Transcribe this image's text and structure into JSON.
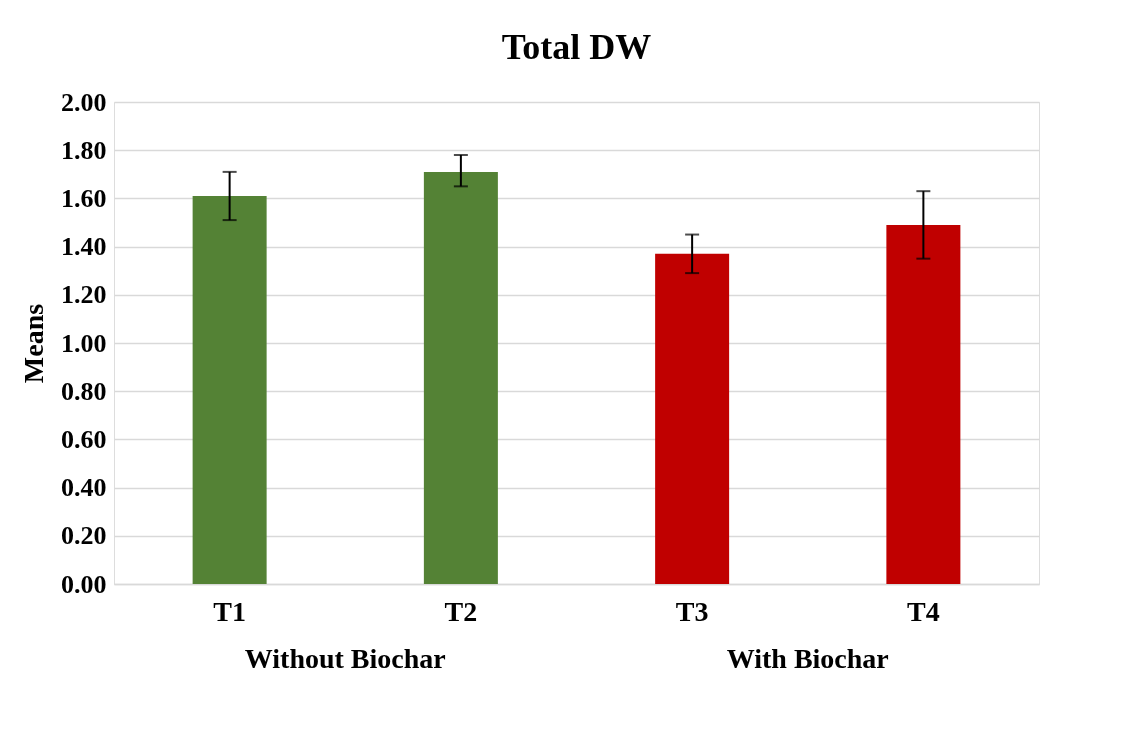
{
  "chart_data": {
    "type": "bar",
    "title": "Total DW",
    "ylabel": "Means",
    "categories": [
      "T1",
      "T2",
      "T3",
      "T4"
    ],
    "values": [
      1.61,
      1.71,
      1.37,
      1.49
    ],
    "colors": [
      "#548235",
      "#548235",
      "#c00000",
      "#c00000"
    ],
    "errors": [
      [
        1.51,
        1.71
      ],
      [
        1.65,
        1.78
      ],
      [
        1.29,
        1.45
      ],
      [
        1.35,
        1.63
      ]
    ],
    "ylim": [
      0,
      2
    ],
    "yticks": [
      {
        "value": 0,
        "label": "0.00"
      },
      {
        "value": 0.2,
        "label": "0.20"
      },
      {
        "value": 0.4,
        "label": "0.40"
      },
      {
        "value": 0.6,
        "label": "0.60"
      },
      {
        "value": 0.8,
        "label": "0.80"
      },
      {
        "value": 1,
        "label": "1.00"
      },
      {
        "value": 1.2,
        "label": "1.20"
      },
      {
        "value": 1.4,
        "label": "1.40"
      },
      {
        "value": 1.6,
        "label": "1.60"
      },
      {
        "value": 1.8,
        "label": "1.80"
      },
      {
        "value": 2,
        "label": "2.00"
      }
    ],
    "grid": "y",
    "annotations": [
      "Without Biochar",
      "With Biochar"
    ]
  }
}
